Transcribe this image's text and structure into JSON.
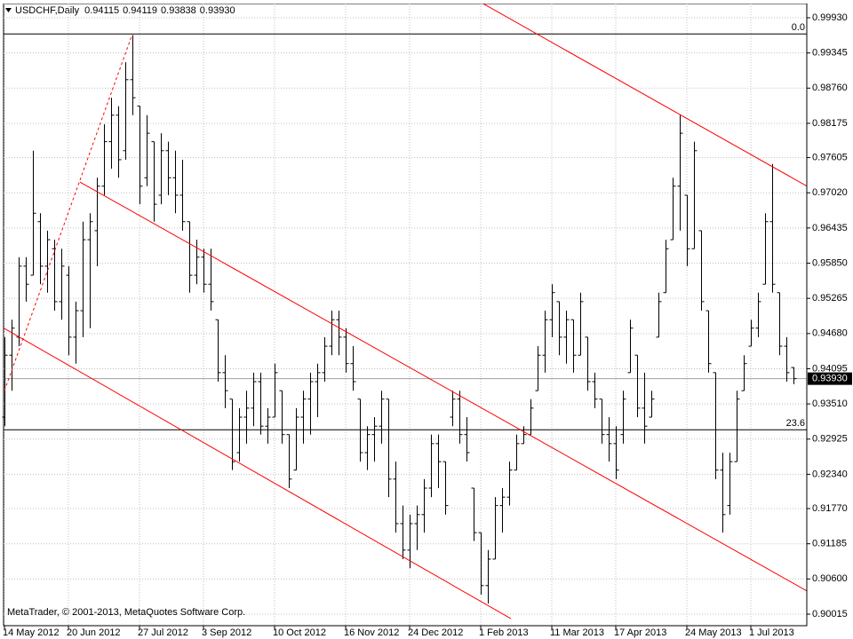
{
  "chart_data": {
    "type": "ohlc",
    "header": {
      "symbol": "USDCHF,Daily",
      "ohlc_labels": [
        "0.94115",
        "0.94119",
        "0.93838",
        "0.93930"
      ]
    },
    "footer": "MetaTrader, © 2001-2013, MetaQuotes Software Corp.",
    "bar_color": "#000000",
    "grid": true,
    "xlim": [
      -0.125,
      112.875
    ],
    "ylim": [
      0.89823,
      1.00166
    ],
    "yticks": [
      {
        "value": 0.9993,
        "label": "0.99930"
      },
      0.99345,
      {
        "value": 0.9876,
        "label": "0.98760"
      },
      0.98175,
      0.97605,
      {
        "value": 0.9702,
        "label": "0.97020"
      },
      0.96435,
      {
        "value": 0.9585,
        "label": "0.95850"
      },
      0.95265,
      {
        "value": 0.9468,
        "label": "0.94680"
      },
      0.94095,
      {
        "value": 0.9351,
        "label": "0.93510"
      },
      0.92925,
      {
        "value": 0.9234,
        "label": "0.92340"
      },
      {
        "value": 0.9177,
        "label": "0.91770"
      },
      0.91185,
      {
        "value": 0.906,
        "label": "0.90600"
      },
      0.90015
    ],
    "last_price": {
      "value": 0.9393,
      "label": "0.93930"
    },
    "categories": [
      "14 May 2012",
      null,
      null,
      null,
      null,
      null,
      null,
      null,
      null,
      "20 Jun 2012",
      null,
      null,
      null,
      null,
      null,
      null,
      null,
      null,
      null,
      "27 Jul 2012",
      null,
      null,
      null,
      null,
      null,
      null,
      null,
      null,
      "3 Sep 2012",
      null,
      null,
      null,
      null,
      null,
      null,
      null,
      null,
      null,
      "10 Oct 2012",
      null,
      null,
      null,
      null,
      null,
      null,
      null,
      null,
      null,
      "16 Nov 2012",
      null,
      null,
      null,
      null,
      null,
      null,
      null,
      null,
      "24 Dec 2012",
      null,
      null,
      null,
      null,
      null,
      null,
      null,
      null,
      null,
      "1 Feb 2013",
      null,
      null,
      null,
      null,
      null,
      null,
      null,
      null,
      null,
      "11 Mar 2013",
      null,
      null,
      null,
      null,
      null,
      null,
      null,
      null,
      "17 Apr 2013",
      null,
      null,
      null,
      null,
      null,
      null,
      null,
      null,
      null,
      "24 May 2013",
      null,
      null,
      null,
      null,
      null,
      null,
      null,
      null,
      "1 Jul 2013",
      null,
      null,
      null,
      null,
      null,
      null
    ],
    "bars": [
      [
        0.9329,
        0.9462,
        0.9314,
        0.9432
      ],
      [
        0.9432,
        0.9491,
        0.9373,
        0.9477
      ],
      [
        0.9462,
        0.9595,
        0.9447,
        0.958
      ],
      [
        0.958,
        0.9595,
        0.9521,
        0.955
      ],
      [
        0.9565,
        0.9772,
        0.9565,
        0.9668
      ],
      [
        0.9654,
        0.9668,
        0.955,
        0.958
      ],
      [
        0.958,
        0.9639,
        0.9536,
        0.9624
      ],
      [
        0.9609,
        0.9624,
        0.9506,
        0.9521
      ],
      [
        0.9521,
        0.9609,
        0.9491,
        0.958
      ],
      [
        0.9565,
        0.958,
        0.9432,
        0.9462
      ],
      [
        0.9462,
        0.9521,
        0.9418,
        0.9506
      ],
      [
        0.9506,
        0.9654,
        0.9462,
        0.9624
      ],
      [
        0.9624,
        0.9668,
        0.9477,
        0.9654
      ],
      [
        0.9639,
        0.9727,
        0.958,
        0.9713
      ],
      [
        0.9713,
        0.9816,
        0.9698,
        0.9787
      ],
      [
        0.9787,
        0.986,
        0.9742,
        0.9831
      ],
      [
        0.9831,
        0.9846,
        0.9727,
        0.9757
      ],
      [
        0.9772,
        0.9919,
        0.9757,
        0.989
      ],
      [
        0.989,
        0.9964,
        0.9831,
        0.986
      ],
      [
        0.9846,
        0.9846,
        0.9683,
        0.9713
      ],
      [
        0.9727,
        0.9831,
        0.9713,
        0.9801
      ],
      [
        0.9787,
        0.9787,
        0.9654,
        0.9683
      ],
      [
        0.9698,
        0.9801,
        0.9683,
        0.9772
      ],
      [
        0.9772,
        0.9787,
        0.9698,
        0.9727
      ],
      [
        0.9727,
        0.9772,
        0.9668,
        0.9698
      ],
      [
        0.9698,
        0.9757,
        0.9639,
        0.9654
      ],
      [
        0.9654,
        0.9654,
        0.9536,
        0.9565
      ],
      [
        0.9565,
        0.9624,
        0.955,
        0.9595
      ],
      [
        0.9595,
        0.9609,
        0.9536,
        0.955
      ],
      [
        0.955,
        0.9609,
        0.9506,
        0.9521
      ],
      [
        0.9491,
        0.9491,
        0.9388,
        0.9403
      ],
      [
        0.9403,
        0.9432,
        0.9344,
        0.9373
      ],
      [
        0.9359,
        0.9359,
        0.9241,
        0.9255
      ],
      [
        0.927,
        0.9344,
        0.9255,
        0.9329
      ],
      [
        0.9329,
        0.9373,
        0.9285,
        0.9344
      ],
      [
        0.9344,
        0.9403,
        0.9314,
        0.9388
      ],
      [
        0.9388,
        0.9403,
        0.93,
        0.9314
      ],
      [
        0.9314,
        0.9344,
        0.9285,
        0.9329
      ],
      [
        0.9329,
        0.9418,
        0.9329,
        0.9403
      ],
      [
        0.9373,
        0.9373,
        0.9285,
        0.93
      ],
      [
        0.93,
        0.93,
        0.9211,
        0.9226
      ],
      [
        0.9241,
        0.9344,
        0.9241,
        0.9329
      ],
      [
        0.9329,
        0.9373,
        0.9285,
        0.9359
      ],
      [
        0.9359,
        0.9403,
        0.93,
        0.9388
      ],
      [
        0.9388,
        0.9418,
        0.9329,
        0.9403
      ],
      [
        0.9403,
        0.9462,
        0.9388,
        0.9447
      ],
      [
        0.9447,
        0.9506,
        0.9432,
        0.9491
      ],
      [
        0.9491,
        0.9506,
        0.9432,
        0.9462
      ],
      [
        0.9462,
        0.9477,
        0.9403,
        0.9418
      ],
      [
        0.9418,
        0.9447,
        0.9373,
        0.9388
      ],
      [
        0.9359,
        0.9359,
        0.9255,
        0.927
      ],
      [
        0.927,
        0.9314,
        0.9241,
        0.93
      ],
      [
        0.93,
        0.9329,
        0.9255,
        0.9314
      ],
      [
        0.9314,
        0.9373,
        0.9285,
        0.9359
      ],
      [
        0.9359,
        0.9359,
        0.9196,
        0.9226
      ],
      [
        0.9226,
        0.9255,
        0.9137,
        0.9152
      ],
      [
        0.9152,
        0.9182,
        0.9093,
        0.9108
      ],
      [
        0.9108,
        0.9167,
        0.9078,
        0.9152
      ],
      [
        0.9152,
        0.9182,
        0.9108,
        0.9167
      ],
      [
        0.9167,
        0.9226,
        0.9137,
        0.9211
      ],
      [
        0.9211,
        0.93,
        0.9196,
        0.9285
      ],
      [
        0.9285,
        0.93,
        0.9211,
        0.9255
      ],
      [
        0.9255,
        0.9255,
        0.9167,
        0.9182
      ],
      [
        0.9329,
        0.9373,
        0.9314,
        0.9359
      ],
      [
        0.9359,
        0.9373,
        0.9285,
        0.93
      ],
      [
        0.93,
        0.9329,
        0.9255,
        0.927
      ],
      [
        0.9211,
        0.9211,
        0.9123,
        0.9137
      ],
      [
        0.9137,
        0.9137,
        0.9034,
        0.9049
      ],
      [
        0.9049,
        0.9108,
        0.9019,
        0.9093
      ],
      [
        0.9093,
        0.9196,
        0.9093,
        0.9182
      ],
      [
        0.9182,
        0.9211,
        0.9137,
        0.9196
      ],
      [
        0.9196,
        0.9255,
        0.9182,
        0.9241
      ],
      [
        0.9241,
        0.93,
        0.9241,
        0.9285
      ],
      [
        0.9285,
        0.9314,
        0.9285,
        0.93
      ],
      [
        0.93,
        0.9359,
        0.93,
        0.9344
      ],
      [
        0.9373,
        0.9447,
        0.9373,
        0.9432
      ],
      [
        0.9432,
        0.9506,
        0.9403,
        0.9491
      ],
      [
        0.9491,
        0.955,
        0.9462,
        0.9536
      ],
      [
        0.9521,
        0.9521,
        0.9432,
        0.9462
      ],
      [
        0.9462,
        0.9506,
        0.9418,
        0.9491
      ],
      [
        0.9491,
        0.9491,
        0.9403,
        0.9432
      ],
      [
        0.9432,
        0.9536,
        0.9432,
        0.9521
      ],
      [
        0.9462,
        0.9462,
        0.9373,
        0.9388
      ],
      [
        0.9388,
        0.9403,
        0.9344,
        0.9359
      ],
      [
        0.9359,
        0.9359,
        0.9285,
        0.93
      ],
      [
        0.93,
        0.9329,
        0.9255,
        0.9285
      ],
      [
        0.9285,
        0.9314,
        0.9226,
        0.9241
      ],
      [
        0.93,
        0.9373,
        0.9285,
        0.9359
      ],
      [
        0.9403,
        0.9491,
        0.9403,
        0.9477
      ],
      [
        0.9432,
        0.9432,
        0.9329,
        0.9344
      ],
      [
        0.9344,
        0.9403,
        0.9285,
        0.9314
      ],
      [
        0.9329,
        0.9373,
        0.9329,
        0.9359
      ],
      [
        0.9462,
        0.9536,
        0.9462,
        0.9521
      ],
      [
        0.9536,
        0.9624,
        0.9536,
        0.9609
      ],
      [
        0.9624,
        0.9727,
        0.9624,
        0.9713
      ],
      [
        0.9713,
        0.9831,
        0.9639,
        0.9801
      ],
      [
        0.9698,
        0.9698,
        0.958,
        0.9609
      ],
      [
        0.9609,
        0.9787,
        0.9609,
        0.9772
      ],
      [
        0.9639,
        0.9639,
        0.9506,
        0.9521
      ],
      [
        0.9506,
        0.9506,
        0.9403,
        0.9418
      ],
      [
        0.9403,
        0.9403,
        0.9226,
        0.9241
      ],
      [
        0.9241,
        0.927,
        0.9137,
        0.9167
      ],
      [
        0.9182,
        0.927,
        0.9167,
        0.9255
      ],
      [
        0.9255,
        0.9373,
        0.9255,
        0.9359
      ],
      [
        0.9373,
        0.9432,
        0.9373,
        0.9418
      ],
      [
        0.9447,
        0.9491,
        0.9447,
        0.9477
      ],
      [
        0.9477,
        0.9536,
        0.9462,
        0.9521
      ],
      [
        0.955,
        0.9668,
        0.955,
        0.9654
      ],
      [
        0.9654,
        0.975,
        0.9536,
        0.955
      ],
      [
        0.9536,
        0.9536,
        0.9432,
        0.9447
      ],
      [
        0.9447,
        0.9462,
        0.9388,
        0.9403
      ],
      [
        0.94115,
        0.94119,
        0.93838,
        0.9393
      ]
    ],
    "trend_lines": [
      {
        "color": "#ff0000",
        "dashed": false,
        "x": [
          67.25,
          112.9
        ],
        "y": [
          1.0017,
          0.9713
        ]
      },
      {
        "color": "#ff0000",
        "dashed": false,
        "x": [
          10.6,
          112.9
        ],
        "y": [
          0.972,
          0.904
        ]
      },
      {
        "color": "#ff0000",
        "dashed": false,
        "x": [
          -0.1,
          71.25
        ],
        "y": [
          0.9477,
          0.8994
        ]
      },
      {
        "color": "#ff0000",
        "dashed": true,
        "x": [
          0,
          18
        ],
        "y": [
          0.9373,
          0.9966
        ]
      }
    ],
    "levels": [
      {
        "label": "0.0",
        "value": 0.9966
      },
      {
        "label": "23.6",
        "value": 0.9308
      }
    ]
  }
}
